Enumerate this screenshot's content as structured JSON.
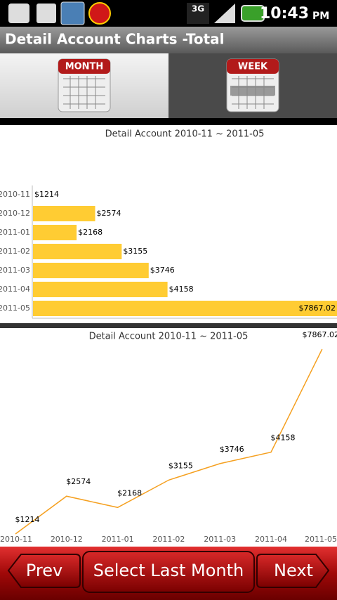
{
  "status_bar": {
    "network": "3G",
    "time": "10:43",
    "ampm": "PM"
  },
  "header": {
    "title": "Detail Account Charts -Total"
  },
  "tabs": [
    {
      "label": "MONTH"
    },
    {
      "label": "WEEK"
    }
  ],
  "chart_data": [
    {
      "type": "bar",
      "title": "Detail Account 2010-11 ~ 2011-05",
      "categories": [
        "2010-11",
        "2010-12",
        "2011-01",
        "2011-02",
        "2011-03",
        "2011-04",
        "2011-05"
      ],
      "values": [
        1214,
        2574,
        2168,
        3155,
        3746,
        4158,
        7867.02
      ],
      "value_labels": [
        "$1214",
        "$2574",
        "$2168",
        "$3155",
        "$3746",
        "$4158",
        "$7867.02"
      ],
      "color": "#ffcc33",
      "xlim": [
        1214,
        7867.02
      ]
    },
    {
      "type": "line",
      "title": "Detail Account 2010-11 ~ 2011-05",
      "categories": [
        "2010-11",
        "2010-12",
        "2011-01",
        "2011-02",
        "2011-03",
        "2011-04",
        "2011-05"
      ],
      "values": [
        1214,
        2574,
        2168,
        3155,
        3746,
        4158,
        7867.02
      ],
      "value_labels": [
        "$1214",
        "$2574",
        "$2168",
        "$3155",
        "$3746",
        "$4158",
        "$7867.02"
      ],
      "color": "#f5a020",
      "ylim": [
        1214,
        7867.02
      ]
    }
  ],
  "buttons": [
    {
      "label": "Prev"
    },
    {
      "label": "Select Last Month"
    },
    {
      "label": "Next"
    }
  ]
}
